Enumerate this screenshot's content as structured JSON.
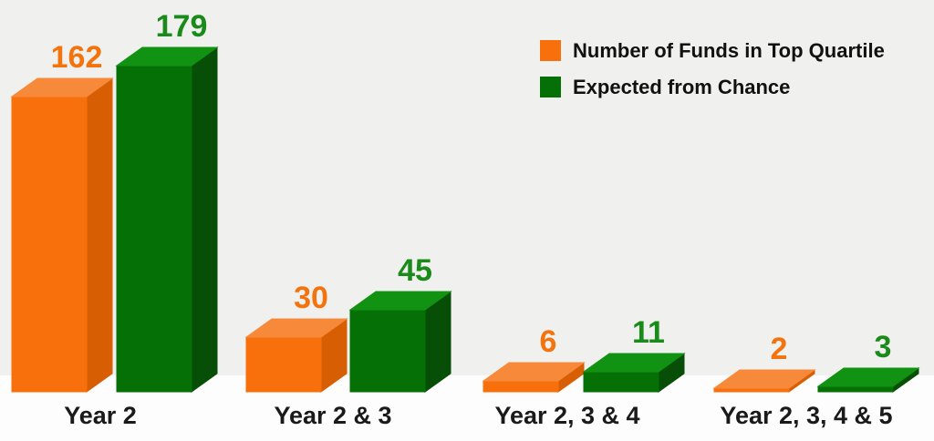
{
  "chart_data": {
    "type": "bar",
    "style": "3d-grouped-columns",
    "title": "",
    "xlabel": "",
    "ylabel": "",
    "categories": [
      "Year 2",
      "Year 2 & 3",
      "Year 2, 3 & 4",
      "Year 2, 3, 4 & 5"
    ],
    "series": [
      {
        "name": "Number of Funds in Top Quartile",
        "color": "#F8700C",
        "values": [
          162,
          30,
          6,
          2
        ]
      },
      {
        "name": "Expected from Chance",
        "color": "#057005",
        "values": [
          179,
          45,
          11,
          3
        ]
      }
    ],
    "value_labels_shown": true,
    "legend_position": "top-right",
    "axes_shown": false,
    "gridlines": false,
    "ylim": [
      0,
      190
    ]
  },
  "colors": {
    "background": "#F0F0EE",
    "floor": "#FDFDFD",
    "orange_front": "#F8700C",
    "orange_top": "#F78A3A",
    "orange_side": "#D85E04",
    "green_front": "#057005",
    "green_top": "#129212",
    "green_side": "#074F07",
    "orange_label": "#F3740E",
    "green_label": "#1A8A1A",
    "category_label_color": "#1A1A1A",
    "legend_text_color": "#111111"
  }
}
